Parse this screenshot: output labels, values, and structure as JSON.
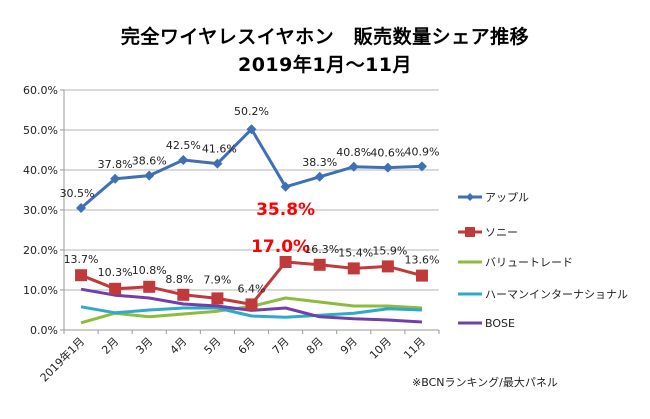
{
  "header": {
    "title_line1": "完全ワイヤレスイヤホン　販売数量シェア推移",
    "title_line2": "2019年1月～11月"
  },
  "footnote": "※BCNランキング/最大パネル",
  "chart_data": {
    "type": "line",
    "title": "完全ワイヤレスイヤホン　販売数量シェア推移 2019年1月～11月",
    "xlabel": "",
    "ylabel": "",
    "ylim": [
      0,
      60
    ],
    "yticks": [
      0,
      10,
      20,
      30,
      40,
      50,
      60
    ],
    "ytick_labels": [
      "0.0%",
      "10.0%",
      "20.0%",
      "30.0%",
      "40.0%",
      "50.0%",
      "60.0%"
    ],
    "grid": true,
    "legend_position": "right",
    "categories": [
      "2019年1月",
      "2月",
      "3月",
      "4月",
      "5月",
      "6月",
      "7月",
      "8月",
      "9月",
      "10月",
      "11月"
    ],
    "series": [
      {
        "name": "アップル",
        "color": "#3F6FB7",
        "marker": "diamond",
        "values": [
          30.5,
          37.8,
          38.6,
          42.5,
          41.6,
          50.2,
          35.8,
          38.3,
          40.8,
          40.6,
          40.9
        ],
        "labels": [
          "30.5%",
          "37.8%",
          "38.6%",
          "42.5%",
          "41.6%",
          "50.2%",
          "35.8%",
          "38.3%",
          "40.8%",
          "40.6%",
          "40.9%"
        ],
        "highlight_index": 6
      },
      {
        "name": "ソニー",
        "color": "#C0393B",
        "marker": "square",
        "values": [
          13.7,
          10.3,
          10.8,
          8.8,
          7.9,
          6.4,
          17.0,
          16.3,
          15.4,
          15.9,
          13.6
        ],
        "labels": [
          "13.7%",
          "10.3%",
          "10.8%",
          "8.8%",
          "7.9%",
          "6.4%",
          "17.0%",
          "16.3%",
          "15.4%",
          "15.9%",
          "13.6%"
        ],
        "highlight_index": 6
      },
      {
        "name": "バリュートレード",
        "color": "#8DBB3E",
        "marker": "none",
        "values": [
          1.8,
          4.2,
          3.3,
          4.0,
          4.7,
          5.9,
          8.0,
          7.0,
          6.0,
          6.0,
          5.5
        ]
      },
      {
        "name": "ハーマンインターナショナル",
        "color": "#2FA9C9",
        "marker": "none",
        "values": [
          5.8,
          4.3,
          5.0,
          5.5,
          5.5,
          3.5,
          3.2,
          3.7,
          4.2,
          5.3,
          5.0
        ]
      },
      {
        "name": "BOSE",
        "color": "#7040A8",
        "marker": "none",
        "values": [
          10.2,
          8.7,
          8.0,
          6.5,
          6.0,
          4.9,
          5.5,
          3.3,
          2.8,
          2.5,
          2.0
        ]
      }
    ]
  }
}
